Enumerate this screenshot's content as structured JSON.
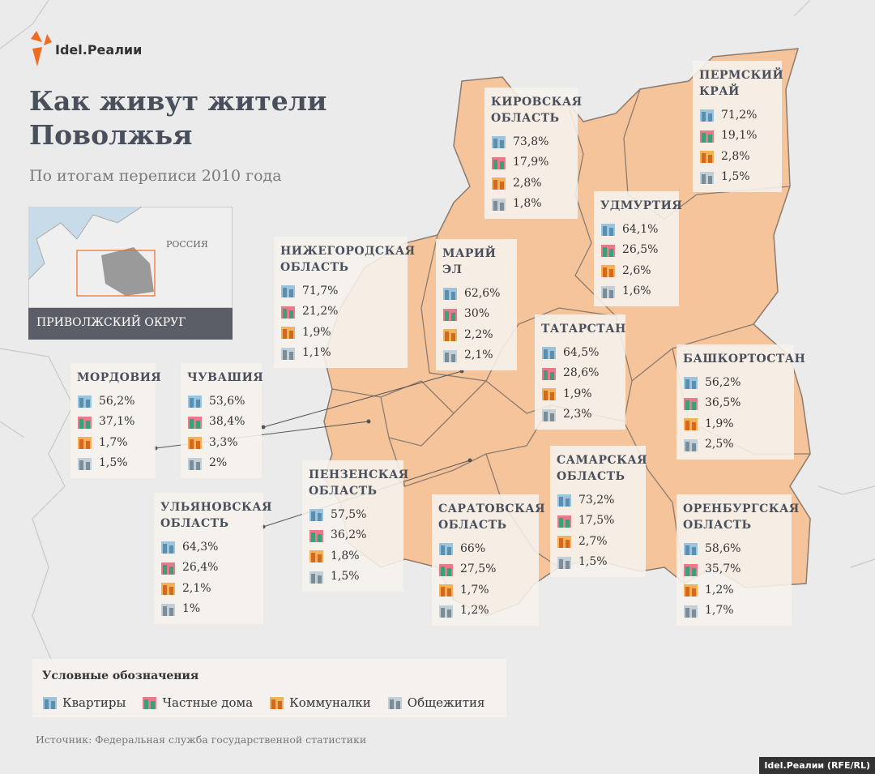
{
  "logo": "Idel.Реалии",
  "header": {
    "title": "Как живут жители Поволжья",
    "subtitle": "По итогам переписи 2010 года"
  },
  "inset": {
    "country": "РОССИЯ",
    "district": "ПРИВОЛЖСКИЙ ОКРУГ"
  },
  "regions": [
    {
      "name": "КИРОВСКАЯ ОБЛАСТЬ",
      "apartments": "73,8%",
      "houses": "17,9%",
      "communal": "2,8%",
      "dorms": "1,8%"
    },
    {
      "name": "ПЕРМСКИЙ КРАЙ",
      "apartments": "71,2%",
      "houses": "19,1%",
      "communal": "2,8%",
      "dorms": "1,5%"
    },
    {
      "name": "УДМУРТИЯ",
      "apartments": "64,1%",
      "houses": "26,5%",
      "communal": "2,6%",
      "dorms": "1,6%"
    },
    {
      "name": "НИЖЕГОРОДСКАЯ ОБЛАСТЬ",
      "apartments": "71,7%",
      "houses": "21,2%",
      "communal": "1,9%",
      "dorms": "1,1%"
    },
    {
      "name": "МАРИЙ ЭЛ",
      "apartments": "62,6%",
      "houses": "30%",
      "communal": "2,2%",
      "dorms": "2,1%"
    },
    {
      "name": "ТАТАРСТАН",
      "apartments": "64,5%",
      "houses": "28,6%",
      "communal": "1,9%",
      "dorms": "2,3%"
    },
    {
      "name": "БАШКОРТОСТАН",
      "apartments": "56,2%",
      "houses": "36,5%",
      "communal": "1,9%",
      "dorms": "2,5%"
    },
    {
      "name": "МОРДОВИЯ",
      "apartments": "56,2%",
      "houses": "37,1%",
      "communal": "1,7%",
      "dorms": "1,5%"
    },
    {
      "name": "ЧУВАШИЯ",
      "apartments": "53,6%",
      "houses": "38,4%",
      "communal": "3,3%",
      "dorms": "2%"
    },
    {
      "name": "ПЕНЗЕНСКАЯ ОБЛАСТЬ",
      "apartments": "57,5%",
      "houses": "36,2%",
      "communal": "1,8%",
      "dorms": "1,5%"
    },
    {
      "name": "САМАРСКАЯ ОБЛАСТЬ",
      "apartments": "73,2%",
      "houses": "17,5%",
      "communal": "2,7%",
      "dorms": "1,5%"
    },
    {
      "name": "САРАТОВСКАЯ ОБЛАСТЬ",
      "apartments": "66%",
      "houses": "27,5%",
      "communal": "1,7%",
      "dorms": "1,2%"
    },
    {
      "name": "ОРЕНБУРГСКАЯ ОБЛАСТЬ",
      "apartments": "58,6%",
      "houses": "35,7%",
      "communal": "1,2%",
      "dorms": "1,7%"
    },
    {
      "name": "УЛЬЯНОВСКАЯ ОБЛАСТЬ",
      "apartments": "64,3%",
      "houses": "26,4%",
      "communal": "2,1%",
      "dorms": "1%"
    }
  ],
  "legend": {
    "title": "Условные обозначения",
    "items": [
      "Квартиры",
      "Частные дома",
      "Коммуналки",
      "Общежития"
    ]
  },
  "source": "Источник: Федеральная служба государственной статистики",
  "credit": "Idel.Реалии (RFE/RL)"
}
